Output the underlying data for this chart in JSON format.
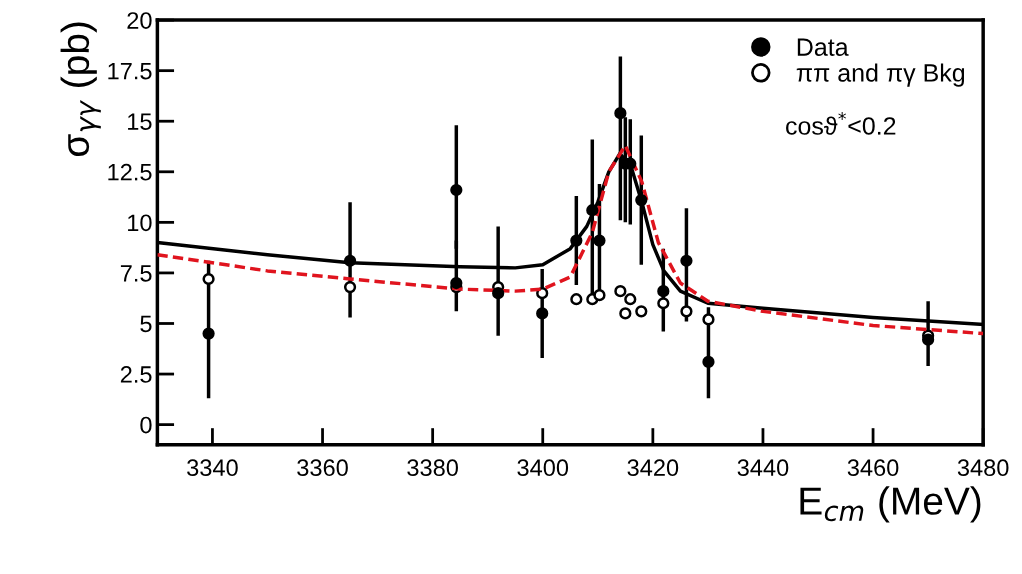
{
  "chart_data": {
    "type": "scatter",
    "xlabel": "E$_{cm}$ (MeV)",
    "ylabel": "σ$_{γγ}$ (pb)",
    "xlim": [
      3330,
      3480
    ],
    "xticks": [
      3340,
      3360,
      3380,
      3400,
      3420,
      3440,
      3460,
      3480
    ],
    "ylim": [
      -1,
      20
    ],
    "yticks": [
      0,
      2.5,
      5,
      7.5,
      10,
      12.5,
      15,
      17.5,
      20
    ],
    "grid": false,
    "legend": "top right",
    "marker": "circle",
    "annotations": [
      {
        "text": "cosϑ$^{*}$<0.2"
      }
    ],
    "series": [
      {
        "name": "Data",
        "color": "#000000",
        "x": [
          3339.3,
          3365,
          3384.3,
          3384.3,
          3391.9,
          3399.9,
          3406.1,
          3409.0,
          3410.3,
          3414.1,
          3415.0,
          3415.9,
          3417.9,
          3421.9,
          3426.1,
          3430.1,
          3470.0
        ],
        "values": [
          4.5,
          8.1,
          11.6,
          7.0,
          6.5,
          5.5,
          9.1,
          10.6,
          9.1,
          15.4,
          12.9,
          12.9,
          11.1,
          6.6,
          8.1,
          3.1,
          4.2
        ],
        "errors": [
          [
            1.3,
            8.1
          ],
          [
            5.3,
            11.0
          ],
          [
            8.7,
            14.8
          ],
          [
            5.6,
            9.1
          ],
          [
            4.4,
            9.8
          ],
          [
            3.3,
            7.7
          ],
          [
            6.9,
            11.3
          ],
          [
            6.2,
            14.1
          ],
          [
            6.2,
            11.9
          ],
          [
            10.1,
            18.2
          ],
          [
            10.0,
            15.2
          ],
          [
            9.9,
            15.1
          ],
          [
            7.9,
            14.3
          ],
          [
            4.6,
            8.7
          ],
          [
            5.1,
            10.7
          ],
          [
            1.3,
            5.8
          ],
          [
            2.9,
            6.1
          ]
        ]
      },
      {
        "name": "ππ and πγ Bkg",
        "color": "#000000",
        "x": [
          3339.3,
          3365,
          3384.3,
          3391.9,
          3399.9,
          3406.1,
          3409.0,
          3410.3,
          3414.1,
          3415.0,
          3415.9,
          3417.9,
          3421.9,
          3426.1,
          3430.1,
          3470.0
        ],
        "values": [
          7.2,
          6.8,
          6.8,
          6.8,
          6.5,
          6.2,
          6.2,
          6.4,
          6.6,
          5.5,
          6.2,
          5.6,
          6.0,
          5.6,
          5.2,
          4.4
        ]
      },
      {
        "type": "line",
        "marker": "none",
        "color": "#000000",
        "line_style": "solid",
        "x": [
          3330,
          3350,
          3365,
          3385,
          3395,
          3400,
          3405,
          3408,
          3410,
          3412,
          3414,
          3416,
          3418,
          3420,
          3422,
          3425,
          3430,
          3440,
          3460,
          3480
        ],
        "values": [
          9.0,
          8.4,
          8.0,
          7.8,
          7.75,
          7.9,
          8.7,
          9.8,
          11.0,
          12.5,
          13.4,
          12.8,
          11.0,
          8.9,
          7.6,
          6.6,
          6.0,
          5.75,
          5.3,
          4.95
        ]
      },
      {
        "type": "line",
        "marker": "none",
        "color": "#e0141e",
        "line_style": "dashed",
        "x": [
          3330,
          3350,
          3365,
          3385,
          3395,
          3400,
          3405,
          3409,
          3412,
          3415,
          3418,
          3421,
          3425,
          3430,
          3440,
          3460,
          3480
        ],
        "values": [
          8.4,
          7.6,
          7.2,
          6.7,
          6.6,
          6.7,
          7.3,
          9.5,
          12.5,
          13.8,
          12.0,
          9.0,
          7.0,
          6.1,
          5.6,
          4.9,
          4.5
        ]
      }
    ]
  }
}
